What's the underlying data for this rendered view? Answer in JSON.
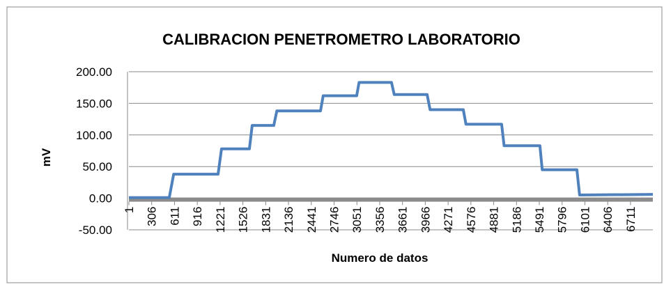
{
  "chart_data": {
    "type": "line",
    "title": "CALIBRACION PENETROMETRO LABORATORIO",
    "xlabel": "Numero de datos",
    "ylabel": "mV",
    "x": [
      1,
      541,
      600,
      1194,
      1240,
      1613,
      1650,
      1939,
      1980,
      2564,
      2600,
      3048,
      3080,
      3514,
      3550,
      3990,
      4030,
      4474,
      4510,
      4987,
      5020,
      5499,
      5530,
      5994,
      6030,
      7010
    ],
    "series": [
      {
        "name": "mV",
        "color": "#4f81bd",
        "values": [
          1,
          1,
          38,
          38,
          78,
          78,
          115,
          115,
          138,
          138,
          162,
          162,
          183,
          183,
          164,
          164,
          140,
          140,
          117,
          117,
          83,
          83,
          45,
          45,
          5,
          6
        ]
      }
    ],
    "xlim": [
      1,
      7010
    ],
    "xticks": [
      1,
      306,
      611,
      916,
      1221,
      1526,
      1831,
      2136,
      2441,
      2746,
      3051,
      3356,
      3661,
      3966,
      4271,
      4576,
      4881,
      5186,
      5491,
      5796,
      6101,
      6406,
      6711
    ],
    "ylim": [
      -50,
      200
    ],
    "yticks": [
      {
        "value": -50,
        "label": "-50.00"
      },
      {
        "value": 0,
        "label": "0.00"
      },
      {
        "value": 50,
        "label": "50.00"
      },
      {
        "value": 100,
        "label": "100.00"
      },
      {
        "value": 150,
        "label": "150.00"
      },
      {
        "value": 200,
        "label": "200.00"
      }
    ],
    "grid": true
  }
}
